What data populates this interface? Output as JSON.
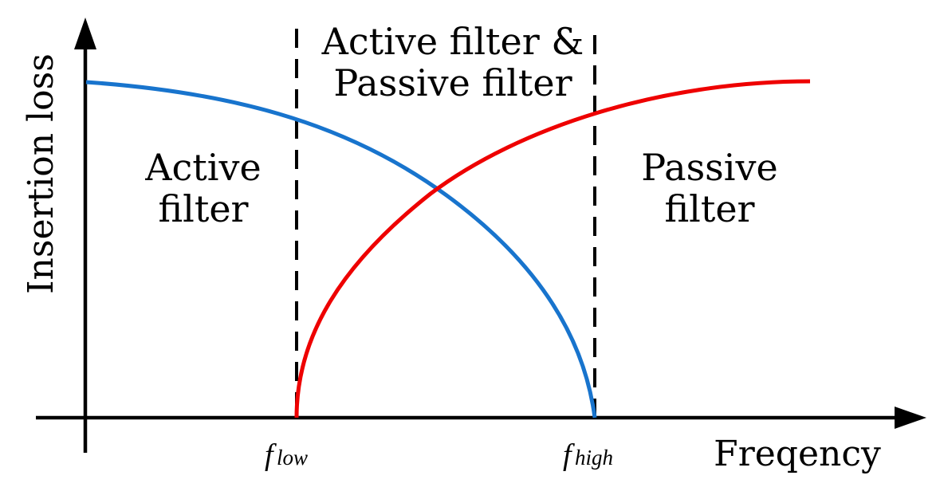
{
  "axes": {
    "y_label": "Insertion loss",
    "x_label": "Freqency"
  },
  "markers": {
    "low_symbol": "f",
    "low_sub": "low",
    "high_symbol": "f",
    "high_sub": "high"
  },
  "regions": {
    "left_line1": "Active",
    "left_line2": "filter",
    "middle_line1": "Active filter &",
    "middle_line2": "Passive filter",
    "right_line1": "Passive",
    "right_line2": "filter"
  },
  "colors": {
    "active_curve": "#1874CD",
    "passive_curve": "#EE0000",
    "axis": "#000000"
  }
}
